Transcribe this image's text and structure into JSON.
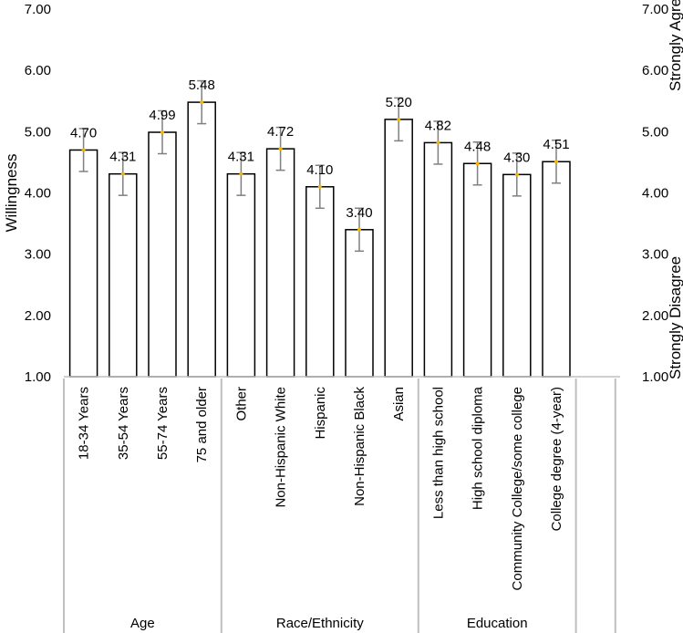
{
  "chart_data": {
    "type": "bar",
    "categories": [
      "18-34 Years",
      "35-54 Years",
      "55-74 Years",
      "75 and older",
      "Other",
      "Non-Hispanic White",
      "Hispanic",
      "Non-Hispanic Black",
      "Asian",
      "Less than high school",
      "High school diploma",
      "Community College/some college",
      "College degree (4-year)"
    ],
    "values": [
      4.7,
      4.31,
      4.99,
      5.48,
      4.31,
      4.72,
      4.1,
      3.4,
      5.2,
      4.82,
      4.48,
      4.3,
      4.51
    ],
    "value_labels": [
      "4.70",
      "4.31",
      "4.99",
      "5.48",
      "4.31",
      "4.72",
      "4.10",
      "3.40",
      "5.20",
      "4.82",
      "4.48",
      "4.30",
      "4.51"
    ],
    "error_bars": [
      0.35,
      0.35,
      0.35,
      0.35,
      0.35,
      0.35,
      0.35,
      0.35,
      0.35,
      0.35,
      0.35,
      0.35,
      0.35
    ],
    "groups": [
      {
        "name": "Age",
        "start": 0,
        "count": 4
      },
      {
        "name": "Race/Ethnicity",
        "start": 4,
        "count": 5
      },
      {
        "name": "Education",
        "start": 9,
        "count": 4
      }
    ],
    "y_ticks": [
      "1.00",
      "2.00",
      "3.00",
      "4.00",
      "5.00",
      "6.00",
      "7.00"
    ],
    "ylim": [
      1,
      7
    ],
    "ylabel": "Willingness",
    "right_labels": {
      "top": "Strongly Agree",
      "bottom": "Strongly Disagree"
    },
    "legend": "none",
    "grid": false,
    "colors": {
      "bar_fill": "#ffffff",
      "bar_stroke": "#000000",
      "error_bar": "#808080",
      "marker": "#f2b705",
      "axis": "#bfbfbf"
    }
  }
}
